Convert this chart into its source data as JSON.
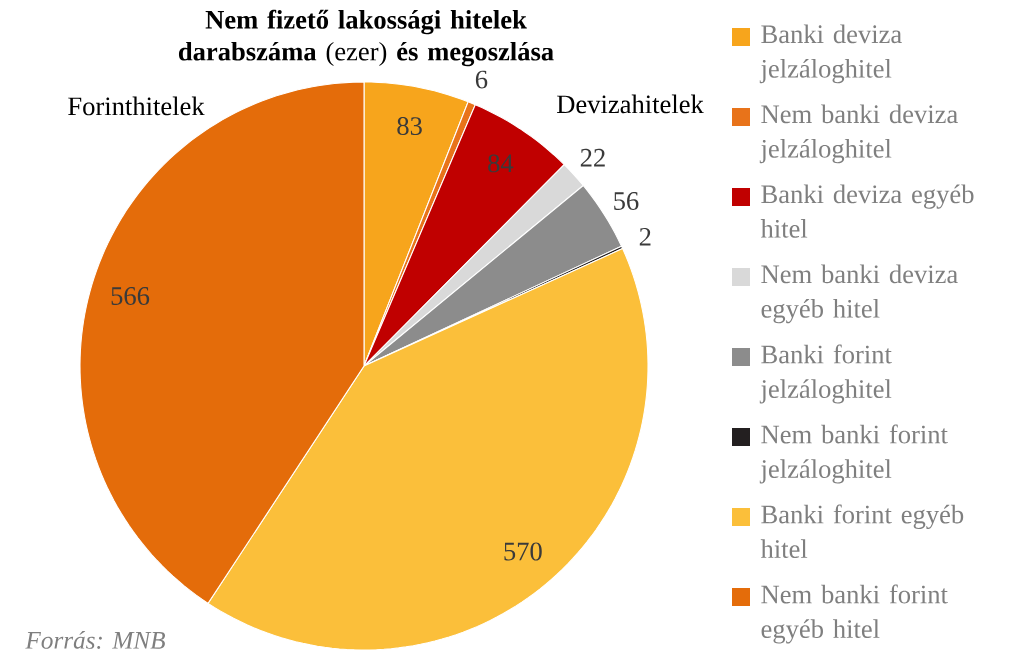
{
  "chart_data": {
    "type": "pie",
    "title": "**Nem fizető lakossági hitelek darabszáma** (ezer) **és megoszlása**",
    "categories": [
      "Banki deviza jelzáloghitel",
      "Nem banki deviza jelzáloghitel",
      "Banki deviza egyéb hitel",
      "Nem banki deviza egyéb hitel",
      "Banki forint jelzáloghitel",
      "Nem banki forint jelzáloghitel",
      "Banki forint egyéb hitel",
      "Nem banki forint egyéb hitel"
    ],
    "values": [
      83,
      6,
      84,
      22,
      56,
      2,
      570,
      566
    ],
    "colors": [
      "#f7a51c",
      "#e8731a",
      "#c00000",
      "#d9d9d9",
      "#8c8c8c",
      "#231f20",
      "#fbbf3a",
      "#e46c0a"
    ],
    "data_labels": true,
    "legend": "right",
    "annotations": [
      "Forinthitelek",
      "Devizahitelek",
      "Forrás: MNB"
    ]
  }
}
